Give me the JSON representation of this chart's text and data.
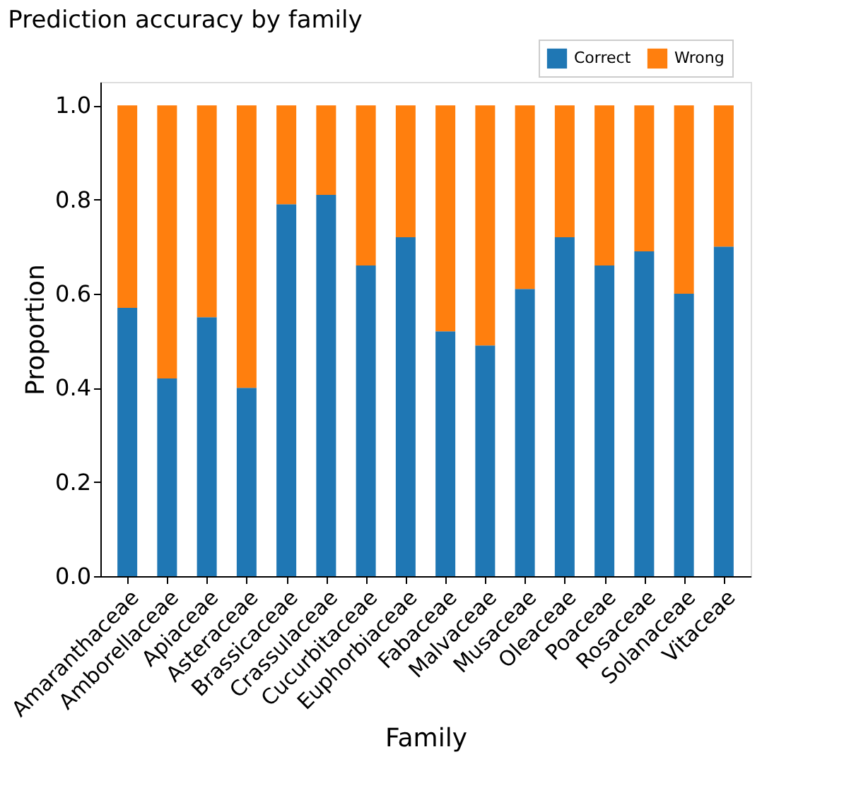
{
  "chart_data": {
    "type": "bar",
    "title": "Prediction accuracy by family",
    "xlabel": "Family",
    "ylabel": "Proportion",
    "categories": [
      "Amaranthaceae",
      "Amborellaceae",
      "Apiaceae",
      "Asteraceae",
      "Brassicaceae",
      "Crassulaceae",
      "Cucurbitaceae",
      "Euphorbiaceae",
      "Fabaceae",
      "Malvaceae",
      "Musaceae",
      "Oleaceae",
      "Poaceae",
      "Rosaceae",
      "Solanaceae",
      "Vitaceae"
    ],
    "series": [
      {
        "name": "Correct",
        "color": "#1f77b4",
        "values": [
          0.57,
          0.42,
          0.55,
          0.4,
          0.79,
          0.81,
          0.66,
          0.72,
          0.52,
          0.49,
          0.61,
          0.72,
          0.66,
          0.69,
          0.6,
          0.7
        ]
      },
      {
        "name": "Wrong",
        "color": "#ff7f0e",
        "values": [
          0.43,
          0.58,
          0.45,
          0.6,
          0.21,
          0.19,
          0.34,
          0.28,
          0.48,
          0.51,
          0.39,
          0.28,
          0.34,
          0.31,
          0.4,
          0.3
        ]
      }
    ],
    "stacked": true,
    "ylim": [
      0,
      1.05
    ],
    "yticks": [
      {
        "value": 0,
        "label": "0.0"
      },
      0.2,
      0.4,
      0.6,
      0.8,
      {
        "value": 1,
        "label": "1.0"
      }
    ],
    "grid": false,
    "legend": "top right"
  }
}
